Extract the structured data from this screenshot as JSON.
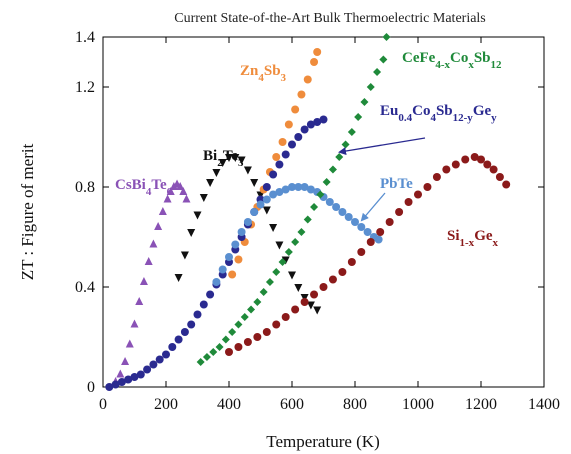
{
  "chart_data": {
    "type": "scatter",
    "title": "Current State-of-the-Art Bulk Thermoelectric Materials",
    "xlabel": "Temperature (K)",
    "ylabel": "ZT : Figure of merit",
    "xlim": [
      0,
      1400
    ],
    "ylim": [
      0,
      1.4
    ],
    "x_ticks": [
      "0",
      "200",
      "400",
      "600",
      "800",
      "1000",
      "1200",
      "1400"
    ],
    "y_ticks": [
      "0",
      "0.4",
      "0.8",
      "1.2",
      "1.4"
    ],
    "grid": false,
    "legend": "none (inline labels)",
    "series": [
      {
        "name": "CsBi4Te6",
        "color": "#8a52b6",
        "marker": "triangle-up",
        "label_parts": [
          {
            "t": "CsBi"
          },
          {
            "t": "4",
            "sub": true
          },
          {
            "t": "Te"
          },
          {
            "t": "6",
            "sub": true
          }
        ],
        "points": [
          [
            40,
            0.02
          ],
          [
            55,
            0.05
          ],
          [
            70,
            0.1
          ],
          [
            85,
            0.17
          ],
          [
            100,
            0.25
          ],
          [
            115,
            0.34
          ],
          [
            130,
            0.42
          ],
          [
            145,
            0.5
          ],
          [
            160,
            0.57
          ],
          [
            175,
            0.64
          ],
          [
            190,
            0.7
          ],
          [
            205,
            0.75
          ],
          [
            215,
            0.78
          ],
          [
            225,
            0.8
          ],
          [
            235,
            0.81
          ],
          [
            245,
            0.8
          ],
          [
            255,
            0.78
          ],
          [
            265,
            0.75
          ]
        ]
      },
      {
        "name": "Bi2Te3",
        "color": "#111111",
        "marker": "triangle-down",
        "label_parts": [
          {
            "t": "Bi"
          },
          {
            "t": "2",
            "sub": true
          },
          {
            "t": "Te"
          },
          {
            "t": "3",
            "sub": true
          }
        ],
        "points": [
          [
            240,
            0.44
          ],
          [
            260,
            0.53
          ],
          [
            280,
            0.62
          ],
          [
            300,
            0.69
          ],
          [
            320,
            0.76
          ],
          [
            340,
            0.82
          ],
          [
            360,
            0.86
          ],
          [
            380,
            0.9
          ],
          [
            400,
            0.92
          ],
          [
            420,
            0.92
          ],
          [
            440,
            0.91
          ],
          [
            460,
            0.87
          ],
          [
            480,
            0.82
          ],
          [
            500,
            0.77
          ],
          [
            520,
            0.71
          ],
          [
            540,
            0.64
          ],
          [
            560,
            0.57
          ],
          [
            580,
            0.51
          ],
          [
            600,
            0.45
          ],
          [
            620,
            0.4
          ],
          [
            640,
            0.36
          ],
          [
            660,
            0.33
          ],
          [
            680,
            0.31
          ]
        ]
      },
      {
        "name": "Zn4Sb3",
        "color": "#ef8c3c",
        "marker": "circle",
        "label_parts": [
          {
            "t": "Zn"
          },
          {
            "t": "4",
            "sub": true
          },
          {
            "t": "Sb"
          },
          {
            "t": "3",
            "sub": true
          }
        ],
        "points": [
          [
            410,
            0.45
          ],
          [
            430,
            0.51
          ],
          [
            450,
            0.58
          ],
          [
            470,
            0.65
          ],
          [
            490,
            0.72
          ],
          [
            510,
            0.79
          ],
          [
            530,
            0.86
          ],
          [
            550,
            0.92
          ],
          [
            570,
            0.98
          ],
          [
            590,
            1.05
          ],
          [
            610,
            1.11
          ],
          [
            630,
            1.17
          ],
          [
            650,
            1.23
          ],
          [
            670,
            1.3
          ],
          [
            680,
            1.34
          ]
        ]
      },
      {
        "name": "Eu0.4Co4Sb12-yGey",
        "color": "#2a2a90",
        "marker": "circle",
        "label_parts": [
          {
            "t": "Eu"
          },
          {
            "t": "0.4",
            "sub": true
          },
          {
            "t": "Co"
          },
          {
            "t": "4",
            "sub": true
          },
          {
            "t": "Sb"
          },
          {
            "t": "12-y",
            "sub": true
          },
          {
            "t": "Ge"
          },
          {
            "t": "y",
            "sub": true
          }
        ],
        "points": [
          [
            20,
            0.0
          ],
          [
            40,
            0.01
          ],
          [
            60,
            0.02
          ],
          [
            80,
            0.03
          ],
          [
            100,
            0.04
          ],
          [
            120,
            0.05
          ],
          [
            140,
            0.07
          ],
          [
            160,
            0.09
          ],
          [
            180,
            0.11
          ],
          [
            200,
            0.13
          ],
          [
            220,
            0.16
          ],
          [
            240,
            0.19
          ],
          [
            260,
            0.22
          ],
          [
            280,
            0.25
          ],
          [
            300,
            0.29
          ],
          [
            320,
            0.33
          ],
          [
            340,
            0.37
          ],
          [
            360,
            0.41
          ],
          [
            380,
            0.45
          ],
          [
            400,
            0.5
          ],
          [
            420,
            0.55
          ],
          [
            440,
            0.6
          ],
          [
            460,
            0.65
          ],
          [
            480,
            0.7
          ],
          [
            500,
            0.75
          ],
          [
            520,
            0.8
          ],
          [
            540,
            0.85
          ],
          [
            560,
            0.89
          ],
          [
            580,
            0.93
          ],
          [
            600,
            0.97
          ],
          [
            620,
            1.0
          ],
          [
            640,
            1.03
          ],
          [
            660,
            1.05
          ],
          [
            680,
            1.06
          ],
          [
            700,
            1.07
          ]
        ]
      },
      {
        "name": "PbTe",
        "color": "#5a8fd0",
        "marker": "circle",
        "label_parts": [
          {
            "t": "PbTe"
          }
        ],
        "points": [
          [
            360,
            0.42
          ],
          [
            380,
            0.47
          ],
          [
            400,
            0.52
          ],
          [
            420,
            0.57
          ],
          [
            440,
            0.62
          ],
          [
            460,
            0.66
          ],
          [
            480,
            0.7
          ],
          [
            500,
            0.73
          ],
          [
            520,
            0.75
          ],
          [
            540,
            0.77
          ],
          [
            560,
            0.78
          ],
          [
            580,
            0.79
          ],
          [
            600,
            0.8
          ],
          [
            620,
            0.8
          ],
          [
            640,
            0.8
          ],
          [
            660,
            0.79
          ],
          [
            680,
            0.78
          ],
          [
            700,
            0.76
          ],
          [
            720,
            0.74
          ],
          [
            740,
            0.72
          ],
          [
            760,
            0.7
          ],
          [
            780,
            0.68
          ],
          [
            800,
            0.66
          ],
          [
            820,
            0.64
          ],
          [
            840,
            0.62
          ],
          [
            860,
            0.6
          ],
          [
            875,
            0.59
          ]
        ]
      },
      {
        "name": "CeFe4-xCoxSb12",
        "color": "#1f8a3a",
        "marker": "diamond",
        "label_parts": [
          {
            "t": "CeFe"
          },
          {
            "t": "4-x",
            "sub": true
          },
          {
            "t": "Co"
          },
          {
            "t": "x",
            "sub": true
          },
          {
            "t": "Sb"
          },
          {
            "t": "12",
            "sub": true
          }
        ],
        "points": [
          [
            310,
            0.1
          ],
          [
            330,
            0.12
          ],
          [
            350,
            0.14
          ],
          [
            370,
            0.16
          ],
          [
            390,
            0.19
          ],
          [
            410,
            0.22
          ],
          [
            430,
            0.25
          ],
          [
            450,
            0.28
          ],
          [
            470,
            0.31
          ],
          [
            490,
            0.34
          ],
          [
            510,
            0.38
          ],
          [
            530,
            0.42
          ],
          [
            550,
            0.46
          ],
          [
            570,
            0.5
          ],
          [
            590,
            0.54
          ],
          [
            610,
            0.58
          ],
          [
            630,
            0.62
          ],
          [
            650,
            0.67
          ],
          [
            670,
            0.72
          ],
          [
            690,
            0.77
          ],
          [
            710,
            0.82
          ],
          [
            730,
            0.87
          ],
          [
            750,
            0.92
          ],
          [
            770,
            0.97
          ],
          [
            790,
            1.02
          ],
          [
            810,
            1.08
          ],
          [
            830,
            1.14
          ],
          [
            850,
            1.2
          ],
          [
            870,
            1.26
          ],
          [
            890,
            1.31
          ],
          [
            900,
            1.4
          ]
        ]
      },
      {
        "name": "Si1-xGex",
        "color": "#8b1a1a",
        "marker": "circle",
        "label_parts": [
          {
            "t": "Si"
          },
          {
            "t": "1-x",
            "sub": true
          },
          {
            "t": "Ge"
          },
          {
            "t": "x",
            "sub": true
          }
        ],
        "points": [
          [
            400,
            0.14
          ],
          [
            430,
            0.16
          ],
          [
            460,
            0.18
          ],
          [
            490,
            0.2
          ],
          [
            520,
            0.22
          ],
          [
            550,
            0.25
          ],
          [
            580,
            0.28
          ],
          [
            610,
            0.31
          ],
          [
            640,
            0.34
          ],
          [
            670,
            0.37
          ],
          [
            700,
            0.4
          ],
          [
            730,
            0.43
          ],
          [
            760,
            0.46
          ],
          [
            790,
            0.5
          ],
          [
            820,
            0.54
          ],
          [
            850,
            0.58
          ],
          [
            880,
            0.62
          ],
          [
            910,
            0.66
          ],
          [
            940,
            0.7
          ],
          [
            970,
            0.74
          ],
          [
            1000,
            0.77
          ],
          [
            1030,
            0.8
          ],
          [
            1060,
            0.84
          ],
          [
            1090,
            0.87
          ],
          [
            1120,
            0.89
          ],
          [
            1150,
            0.91
          ],
          [
            1180,
            0.92
          ],
          [
            1200,
            0.91
          ],
          [
            1220,
            0.89
          ],
          [
            1240,
            0.87
          ],
          [
            1260,
            0.84
          ],
          [
            1280,
            0.81
          ]
        ]
      }
    ]
  }
}
